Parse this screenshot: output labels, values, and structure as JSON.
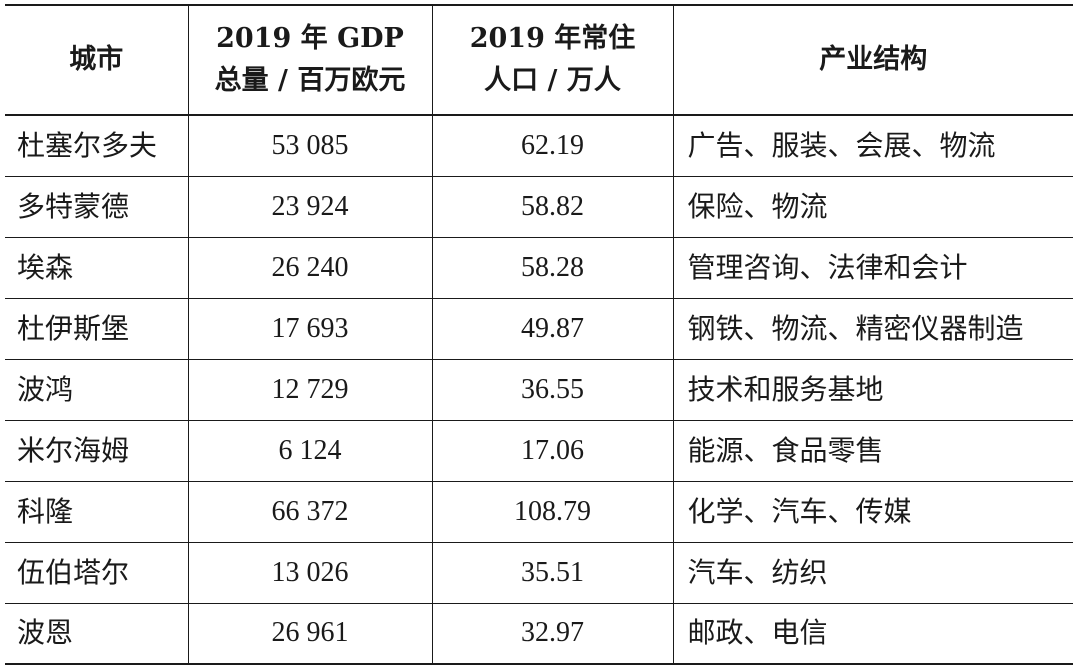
{
  "table": {
    "headers": {
      "city": "城市",
      "gdp_line1": "2019 年 GDP",
      "gdp_line2": "总量 / 百万欧元",
      "pop_line1": "2019 年常住",
      "pop_line2": "人口 / 万人",
      "industry": "产业结构"
    },
    "rows": [
      {
        "city": "杜塞尔多夫",
        "gdp": "53 085",
        "pop": "62.19",
        "industry": "广告、服装、会展、物流"
      },
      {
        "city": "多特蒙德",
        "gdp": "23 924",
        "pop": "58.82",
        "industry": "保险、物流"
      },
      {
        "city": "埃森",
        "gdp": "26 240",
        "pop": "58.28",
        "industry": "管理咨询、法律和会计"
      },
      {
        "city": "杜伊斯堡",
        "gdp": "17 693",
        "pop": "49.87",
        "industry": "钢铁、物流、精密仪器制造"
      },
      {
        "city": "波鸿",
        "gdp": "12 729",
        "pop": "36.55",
        "industry": "技术和服务基地"
      },
      {
        "city": "米尔海姆",
        "gdp": "6 124",
        "pop": "17.06",
        "industry": "能源、食品零售"
      },
      {
        "city": "科隆",
        "gdp": "66 372",
        "pop": "108.79",
        "industry": "化学、汽车、传媒"
      },
      {
        "city": "伍伯塔尔",
        "gdp": "13 026",
        "pop": "35.51",
        "industry": "汽车、纺织"
      },
      {
        "city": "波恩",
        "gdp": "26 961",
        "pop": "32.97",
        "industry": "邮政、电信"
      }
    ]
  }
}
